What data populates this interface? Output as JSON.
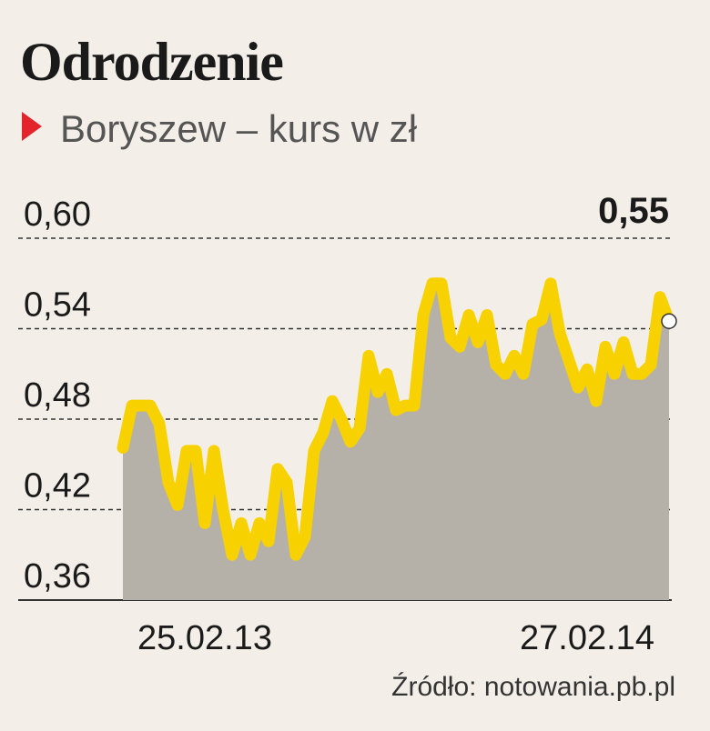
{
  "chart_data": {
    "type": "area-line",
    "title": "Odrodzenie",
    "subtitle": "Boryszew – kurs w zł",
    "source": "Źródło: notowania.pb.pl",
    "categories": [
      null,
      null,
      null,
      null,
      null,
      null,
      null,
      null,
      null,
      "25.02.13",
      null,
      null,
      null,
      null,
      null,
      null,
      null,
      null,
      null,
      null,
      null,
      null,
      null,
      null,
      null,
      null,
      null,
      null,
      null,
      null,
      null,
      null,
      null,
      null,
      null,
      null,
      null,
      null,
      null,
      null,
      null,
      null,
      null,
      null,
      null,
      null,
      null,
      null,
      null,
      null,
      null,
      "27.02.14",
      null,
      null,
      null,
      null,
      null,
      null,
      null,
      null,
      null
    ],
    "values": [
      0.461,
      0.489,
      0.489,
      0.489,
      0.477,
      0.438,
      0.423,
      0.459,
      0.459,
      0.411,
      0.459,
      0.42,
      0.39,
      0.411,
      0.39,
      0.411,
      0.399,
      0.447,
      0.438,
      0.39,
      0.402,
      0.459,
      0.471,
      0.492,
      0.48,
      0.465,
      0.474,
      0.522,
      0.498,
      0.51,
      0.486,
      0.489,
      0.489,
      0.549,
      0.57,
      0.57,
      0.534,
      0.528,
      0.549,
      0.531,
      0.549,
      0.516,
      0.51,
      0.522,
      0.51,
      0.543,
      0.546,
      0.57,
      0.537,
      0.519,
      0.501,
      0.513,
      0.492,
      0.528,
      0.51,
      0.531,
      0.51,
      0.51,
      0.516,
      0.561,
      0.545
    ],
    "value_labels": [
      null,
      null,
      null,
      null,
      null,
      null,
      null,
      null,
      null,
      null,
      null,
      null,
      null,
      null,
      null,
      null,
      null,
      null,
      null,
      null,
      null,
      null,
      null,
      null,
      null,
      null,
      null,
      null,
      null,
      null,
      null,
      null,
      null,
      null,
      null,
      null,
      null,
      null,
      null,
      null,
      null,
      null,
      null,
      null,
      null,
      null,
      null,
      null,
      null,
      null,
      null,
      null,
      null,
      null,
      null,
      null,
      null,
      null,
      null,
      null,
      "0,55"
    ],
    "color": "#f7d200",
    "area_color": "#b5b1a9",
    "ylim": [
      0.36,
      0.6
    ],
    "yticks": [
      {
        "value": 0.6,
        "label": "0,60"
      },
      {
        "value": 0.54,
        "label": "0,54"
      },
      {
        "value": 0.48,
        "label": "0,48"
      },
      {
        "value": 0.42,
        "label": "0,42"
      },
      {
        "value": 0.36,
        "label": "0,36"
      }
    ],
    "grid": true
  }
}
